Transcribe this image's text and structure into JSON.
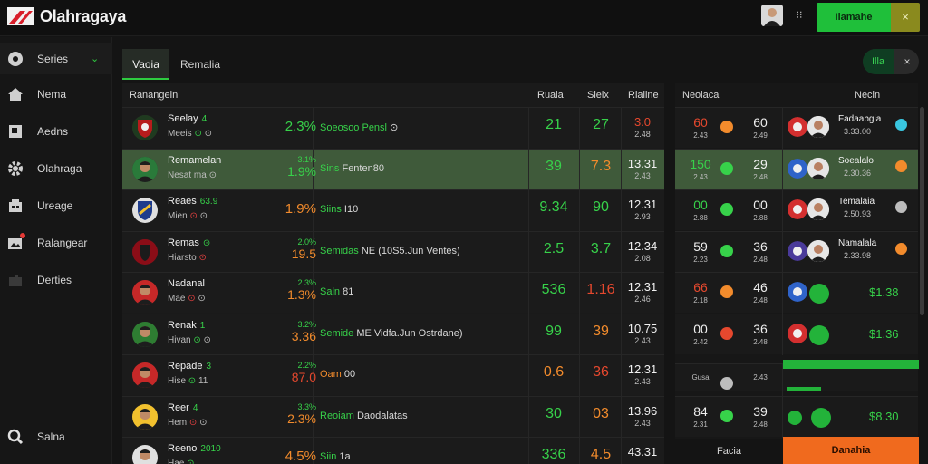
{
  "header": {
    "brand": "Olahragaya",
    "cta_label": "Ilamahe",
    "close_glyph": "×",
    "dots_glyph": "⁝⁝",
    "icons": {
      "logo": "brand-logo-icon",
      "avatar": "user-avatar-icon"
    }
  },
  "sidebar": {
    "items": [
      {
        "label": "Series",
        "icon": "settings-circle-icon"
      },
      {
        "label": "Nema",
        "icon": "home-icon"
      },
      {
        "label": "Aedns",
        "icon": "bookmark-icon"
      },
      {
        "label": "Olahraga",
        "icon": "gear-icon"
      },
      {
        "label": "Ureage",
        "icon": "building-icon"
      },
      {
        "label": "Ralangear",
        "icon": "image-icon"
      },
      {
        "label": "Derties",
        "icon": "puzzle-icon"
      }
    ],
    "footer_label": "Salna",
    "chevron": "⌄"
  },
  "tabs": {
    "active": "Vaoia",
    "inactive": "Remalia"
  },
  "toggle": {
    "on_label": "Illa",
    "close": "×"
  },
  "table": {
    "headers": {
      "name": "Ranangein",
      "v1": "Ruaia",
      "v2": "Sielx",
      "v3": "Rlaline"
    },
    "rows": [
      {
        "name": "Seelay",
        "extra": "4",
        "sub": "Meeis",
        "sub_g": "⊙",
        "sub_r": "",
        "sub_tail": "⊙",
        "pct_top": "",
        "pct": "2.3%",
        "pct_color": "green",
        "desc": "Soeosoo Pensl",
        "desc_tail": "⊙",
        "desc_style": "g",
        "v1": "21",
        "v1c": "green",
        "v2": "27",
        "v2c": "green",
        "v3a": "3.0",
        "v3b": "2.48",
        "v3c": "red",
        "logo": "shield-red"
      },
      {
        "name": "Remamelan",
        "extra": "",
        "sub": "Nesat ma",
        "sub_g": "",
        "sub_r": "",
        "sub_tail": "⊙",
        "pct_top": "3.1%",
        "pct": "1.9%",
        "pct_color": "green",
        "desc": "Sins",
        "desc_tail": "Fenten80",
        "desc_style": "g",
        "v1": "39",
        "v1c": "green",
        "v2": "7.3",
        "v2c": "orange",
        "v3a": "13.31",
        "v3b": "2.43",
        "v3c": "white",
        "logo": "face-green"
      },
      {
        "name": "Reaes",
        "extra": "63.9",
        "sub": "Mien",
        "sub_g": "",
        "sub_r": "⊙",
        "sub_tail": "⊙",
        "pct_top": "",
        "pct": "1.9%",
        "pct_color": "orange",
        "desc": "Siins",
        "desc_tail": "I10",
        "desc_style": "g",
        "v1": "9.34",
        "v1c": "green",
        "v2": "90",
        "v2c": "green",
        "v3a": "12.31",
        "v3b": "2.93",
        "v3c": "white",
        "logo": "shield-blue"
      },
      {
        "name": "Remas",
        "extra": "⊙",
        "sub": "Hiarsto",
        "sub_g": "",
        "sub_r": "⊙",
        "sub_tail": "",
        "pct_top": "2.0%",
        "pct": "19.5",
        "pct_color": "orange",
        "desc": "Semidas",
        "desc_tail": "NE (10S5.Jun Ventes)",
        "desc_style": "g",
        "v1": "2.5",
        "v1c": "green",
        "v2": "3.7",
        "v2c": "green",
        "v3a": "12.34",
        "v3b": "2.08",
        "v3c": "white",
        "logo": "shield-dark-red"
      },
      {
        "name": "Nadanal",
        "extra": "",
        "sub": "Mae",
        "sub_g": "",
        "sub_r": "⊙",
        "sub_tail": "⊙",
        "pct_top": "2.3%",
        "pct": "1.3%",
        "pct_color": "orange",
        "desc": "Saln",
        "desc_tail": "81",
        "desc_style": "g",
        "v1": "536",
        "v1c": "green",
        "v2": "1.16",
        "v2c": "red",
        "v3a": "12.31",
        "v3b": "2.46",
        "v3c": "white",
        "logo": "face-flag"
      },
      {
        "name": "Renak",
        "extra": "1",
        "sub": "Hivan",
        "sub_g": "⊙",
        "sub_r": "",
        "sub_tail": "⊙",
        "pct_top": "3.2%",
        "pct": "3.36",
        "pct_color": "orange",
        "desc": "Semide",
        "desc_tail": "ME Vidfa.Jun Ostrdane)",
        "desc_style": "g",
        "v1": "99",
        "v1c": "green",
        "v2": "39",
        "v2c": "orange",
        "v3a": "10.75",
        "v3b": "2.43",
        "v3c": "white",
        "logo": "face-dark"
      },
      {
        "name": "Repade",
        "extra": "3",
        "sub": "Hise",
        "sub_g": "⊙",
        "sub_r": "",
        "sub_tail": "11",
        "pct_top": "2.2%",
        "pct": "87.0",
        "pct_color": "red",
        "desc": "Oam",
        "desc_tail": "00",
        "desc_style": "o",
        "v1": "0.6",
        "v1c": "orange",
        "v2": "36",
        "v2c": "red",
        "v3a": "12.31",
        "v3b": "2.43",
        "v3c": "white",
        "logo": "face-red"
      },
      {
        "name": "Reer",
        "extra": "4",
        "sub": "Hem",
        "sub_g": "",
        "sub_r": "⊙",
        "sub_tail": "⊙",
        "pct_top": "3.3%",
        "pct": "2.3%",
        "pct_color": "orange",
        "desc": "Reoiam",
        "desc_tail": "Daodalatas",
        "desc_style": "g",
        "v1": "30",
        "v1c": "green",
        "v2": "03",
        "v2c": "orange",
        "v3a": "13.96",
        "v3b": "2.43",
        "v3c": "white",
        "logo": "face-yellow"
      },
      {
        "name": "Reeno",
        "extra": "2010",
        "sub": "Hae",
        "sub_g": "⊙",
        "sub_r": "",
        "sub_tail": "",
        "pct_top": "",
        "pct": "4.5%",
        "pct_color": "orange",
        "desc": "Siin",
        "desc_tail": "1a",
        "desc_style": "g",
        "v1": "336",
        "v1c": "green",
        "v2": "4.5",
        "v2c": "orange",
        "v3a": "43.31",
        "v3b": "",
        "v3c": "white",
        "logo": "face-white"
      }
    ]
  },
  "right": {
    "headers": {
      "left": "Neolaca",
      "right": "Necin"
    },
    "rows": [
      {
        "a": "60",
        "ac": "red",
        "b": "2.43",
        "dot": "orange",
        "c": "60",
        "cb": "2.49",
        "name": "Fadaabgia",
        "sub": "3.33.00",
        "ico": "cyan",
        "logo": "red"
      },
      {
        "a": "150",
        "ac": "green",
        "b": "2.43",
        "dot": "green",
        "c": "29",
        "cb": "2.48",
        "name": "Soealalo",
        "sub": "2.30.36",
        "ico": "orange",
        "logo": "blue"
      },
      {
        "a": "00",
        "ac": "green",
        "b": "2.88",
        "dot": "green",
        "c": "00",
        "cb": "2.88",
        "name": "Temalaia",
        "sub": "2.50.93",
        "ico": "gray",
        "logo": "red"
      },
      {
        "a": "59",
        "ac": "white",
        "b": "2.23",
        "dot": "green",
        "c": "36",
        "cb": "2.48",
        "name": "Namalala",
        "sub": "2.33.98",
        "ico": "orange",
        "logo": "purple"
      },
      {
        "a": "66",
        "ac": "red",
        "b": "2.18",
        "dot": "orange",
        "c": "46",
        "cb": "2.48",
        "price": "$1.38",
        "logo": "blue"
      },
      {
        "a": "00",
        "ac": "white",
        "b": "2.42",
        "dot": "red",
        "c": "36",
        "cb": "2.48",
        "price": "$1.36",
        "logo": "red"
      },
      {
        "a": "",
        "ac": "white",
        "b": "Gusa",
        "dot": "gray",
        "c": "",
        "cb": "2.43",
        "price": "",
        "logo": ""
      },
      {
        "a": "84",
        "ac": "white",
        "b": "2.31",
        "dot": "green",
        "c": "39",
        "cb": "2.48",
        "price": "$8.30",
        "logo": ""
      }
    ],
    "footer_left": "Facia",
    "footer_right": "Danahia"
  },
  "colors": {
    "accent_green": "#2ecc40",
    "accent_orange": "#f06a1e",
    "highlight_row": "#3f5a3a"
  }
}
